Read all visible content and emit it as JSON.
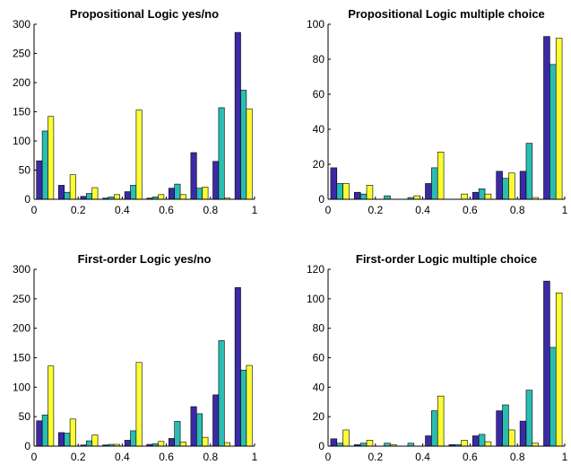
{
  "colors": {
    "series_1": "#3a2aa6",
    "series_2": "#2bbcb2",
    "series_3": "#fcfc34",
    "axis": "#000000",
    "background": "#ffffff"
  },
  "chart_data": [
    {
      "type": "bar",
      "title": "Propositional Logic yes/no",
      "xlabel": "",
      "ylabel": "",
      "xlim": [
        0,
        1
      ],
      "ylim": [
        0,
        300
      ],
      "xticks": [
        "0",
        "0.2",
        "0.4",
        "0.6",
        "0.8",
        "1"
      ],
      "yticks": [
        "0",
        "50",
        "100",
        "150",
        "200",
        "250",
        "300"
      ],
      "bin_centers": [
        0.05,
        0.15,
        0.25,
        0.35,
        0.45,
        0.55,
        0.65,
        0.75,
        0.85,
        0.95
      ],
      "series": [
        {
          "values": [
            66,
            24,
            5,
            2,
            13,
            2,
            19,
            80,
            65,
            286
          ]
        },
        {
          "values": [
            117,
            12,
            10,
            4,
            24,
            4,
            26,
            19,
            157,
            187
          ]
        },
        {
          "values": [
            142,
            42,
            20,
            8,
            153,
            8,
            8,
            21,
            2,
            155
          ]
        }
      ],
      "grid": false,
      "legend": "none"
    },
    {
      "type": "bar",
      "title": "Propositional Logic multiple choice",
      "xlabel": "",
      "ylabel": "",
      "xlim": [
        0,
        1
      ],
      "ylim": [
        0,
        100
      ],
      "xticks": [
        "0",
        "0.2",
        "0.4",
        "0.6",
        "0.8",
        "1"
      ],
      "yticks": [
        "0",
        "20",
        "40",
        "60",
        "80",
        "100"
      ],
      "bin_centers": [
        0.05,
        0.15,
        0.25,
        0.35,
        0.45,
        0.55,
        0.65,
        0.75,
        0.85,
        0.95
      ],
      "series": [
        {
          "values": [
            18,
            4,
            0,
            0,
            9,
            0,
            4,
            16,
            16,
            93
          ]
        },
        {
          "values": [
            9,
            3,
            2,
            1,
            18,
            0,
            6,
            12,
            32,
            77
          ]
        },
        {
          "values": [
            9,
            8,
            0,
            2,
            27,
            3,
            3,
            15,
            1,
            92
          ]
        }
      ],
      "grid": false,
      "legend": "none"
    },
    {
      "type": "bar",
      "title": "First-order Logic yes/no",
      "xlabel": "",
      "ylabel": "",
      "xlim": [
        0,
        1
      ],
      "ylim": [
        0,
        300
      ],
      "xticks": [
        "0",
        "0.2",
        "0.4",
        "0.6",
        "0.8",
        "1"
      ],
      "yticks": [
        "0",
        "50",
        "100",
        "150",
        "200",
        "250",
        "300"
      ],
      "bin_centers": [
        0.05,
        0.15,
        0.25,
        0.35,
        0.45,
        0.55,
        0.65,
        0.75,
        0.85,
        0.95
      ],
      "series": [
        {
          "values": [
            43,
            23,
            2,
            2,
            10,
            3,
            13,
            67,
            87,
            269
          ]
        },
        {
          "values": [
            53,
            22,
            9,
            3,
            26,
            4,
            42,
            55,
            179,
            129
          ]
        },
        {
          "values": [
            136,
            46,
            19,
            3,
            142,
            8,
            7,
            15,
            6,
            137
          ]
        }
      ],
      "grid": false,
      "legend": "none"
    },
    {
      "type": "bar",
      "title": "First-order Logic multiple choice",
      "xlabel": "",
      "ylabel": "",
      "xlim": [
        0,
        1
      ],
      "ylim": [
        0,
        120
      ],
      "xticks": [
        "0",
        "0.2",
        "0.4",
        "0.6",
        "0.8",
        "1"
      ],
      "yticks": [
        "0",
        "20",
        "40",
        "60",
        "80",
        "100",
        "120"
      ],
      "bin_centers": [
        0.05,
        0.15,
        0.25,
        0.35,
        0.45,
        0.55,
        0.65,
        0.75,
        0.85,
        0.95
      ],
      "series": [
        {
          "values": [
            5,
            1,
            0,
            0,
            7,
            1,
            7,
            24,
            17,
            112
          ]
        },
        {
          "values": [
            2,
            2,
            2,
            2,
            24,
            1,
            8,
            28,
            38,
            67
          ]
        },
        {
          "values": [
            11,
            4,
            1,
            0,
            34,
            4,
            3,
            11,
            2,
            104
          ]
        }
      ],
      "grid": false,
      "legend": "none"
    }
  ]
}
